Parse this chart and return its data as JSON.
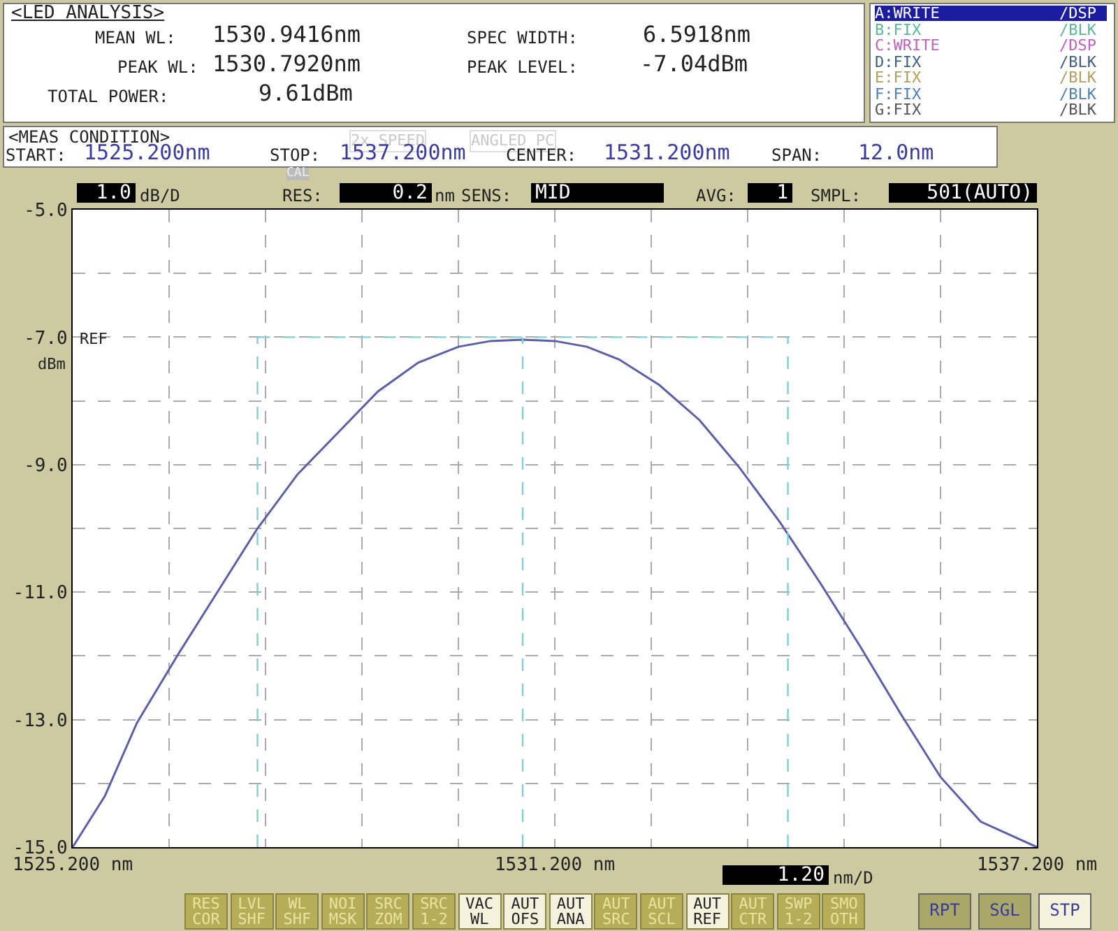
{
  "chart_data": {
    "type": "line",
    "title": "<LED ANALYSIS>",
    "x": [
      1525.2,
      1525.6,
      1526.0,
      1526.5,
      1527.0,
      1527.5,
      1528.0,
      1528.5,
      1529.0,
      1529.5,
      1530.0,
      1530.4,
      1530.8,
      1531.2,
      1531.6,
      1532.0,
      1532.5,
      1533.0,
      1533.5,
      1534.0,
      1534.5,
      1535.0,
      1535.5,
      1536.0,
      1536.5,
      1537.2
    ],
    "series": [
      {
        "color": "#5a5fa8",
        "values": [
          -15.0,
          -14.2,
          -13.05,
          -12.0,
          -11.0,
          -10.0,
          -9.15,
          -8.5,
          -7.85,
          -7.4,
          -7.15,
          -7.06,
          -7.04,
          -7.06,
          -7.15,
          -7.35,
          -7.75,
          -8.3,
          -9.05,
          -9.9,
          -10.85,
          -11.85,
          -12.9,
          -13.9,
          -14.6,
          -15.0
        ]
      }
    ],
    "xlim": [
      1525.2,
      1537.2
    ],
    "xticks": [
      {
        "value": 1525.2,
        "label": "1525.200 nm"
      },
      {
        "value": 1526.4,
        "label": null
      },
      {
        "value": 1527.6,
        "label": null
      },
      {
        "value": 1528.8,
        "label": null
      },
      {
        "value": 1530.0,
        "label": null
      },
      {
        "value": 1531.2,
        "label": "1531.200 nm"
      },
      {
        "value": 1532.4,
        "label": null
      },
      {
        "value": 1533.6,
        "label": null
      },
      {
        "value": 1534.8,
        "label": null
      },
      {
        "value": 1536.0,
        "label": null
      },
      {
        "value": 1537.2,
        "label": "1537.200 nm"
      }
    ],
    "ylim": [
      -15,
      -5
    ],
    "yticks": [
      {
        "value": -5,
        "label": "-5.0"
      },
      {
        "value": -6,
        "label": null
      },
      {
        "value": -7,
        "label": "-7.0"
      },
      {
        "value": -8,
        "label": null
      },
      {
        "value": -9,
        "label": "-9.0"
      },
      {
        "value": -10,
        "label": null
      },
      {
        "value": -11,
        "label": "-11.0"
      },
      {
        "value": -12,
        "label": null
      },
      {
        "value": -13,
        "label": "-13.0"
      },
      {
        "value": -14,
        "label": null
      },
      {
        "value": -15,
        "label": "-15.0"
      }
    ],
    "grid": true,
    "line_style": "solid",
    "ref_lines": [
      {
        "axis": "x",
        "value": 1527.5,
        "color": "#7fcfd6",
        "line_style": "dashed"
      },
      {
        "axis": "x",
        "value": 1530.8,
        "color": "#7fcfd6",
        "line_style": "dashed"
      },
      {
        "axis": "x",
        "value": 1534.1,
        "color": "#7fcfd6",
        "line_style": "dashed"
      },
      {
        "axis": "y",
        "value": -7.0,
        "color": "#7fcfd6",
        "line_style": "dashed"
      }
    ],
    "annotations": [
      "MEAN WL:",
      "1530.9416nm",
      "PEAK WL:",
      "1530.7920nm",
      "TOTAL POWER:",
      "9.61dBm",
      "SPEC WIDTH:",
      "6.5918nm",
      "PEAK LEVEL:",
      "-7.04dBm",
      "A:WRITE",
      "/DSP",
      "B:FIX",
      "/BLK",
      "C:WRITE",
      "/DSP",
      "D:FIX",
      "/BLK",
      "E:FIX",
      "/BLK",
      "F:FIX",
      "/BLK",
      "G:FIX",
      "/BLK",
      "<MEAS CONDITION>",
      "2x SPEED",
      "ANGLED PC",
      "START:",
      "1525.200nm",
      "STOP:",
      "1537.200nm",
      "CENTER:",
      "1531.200nm",
      "SPAN:",
      "12.0nm",
      "1.0",
      "dB/D",
      "CAL",
      "RES:",
      "0.2",
      "nm",
      "SENS:",
      "MID",
      "AVG:",
      "1",
      "SMPL:",
      "501(AUTO)",
      "REF",
      "dBm",
      "1.20",
      "nm/D",
      "RES COR",
      "LVL SHF",
      "WL SHF",
      "NOI MSK",
      "SRC ZOM",
      "SRC 1-2",
      "VAC WL",
      "AUT OFS",
      "AUT ANA",
      "AUT SRC",
      "AUT SCL",
      "AUT REF",
      "AUT CTR",
      "SWP 1-2",
      "SMO OTH",
      "RPT",
      "SGL",
      "STP"
    ]
  }
}
